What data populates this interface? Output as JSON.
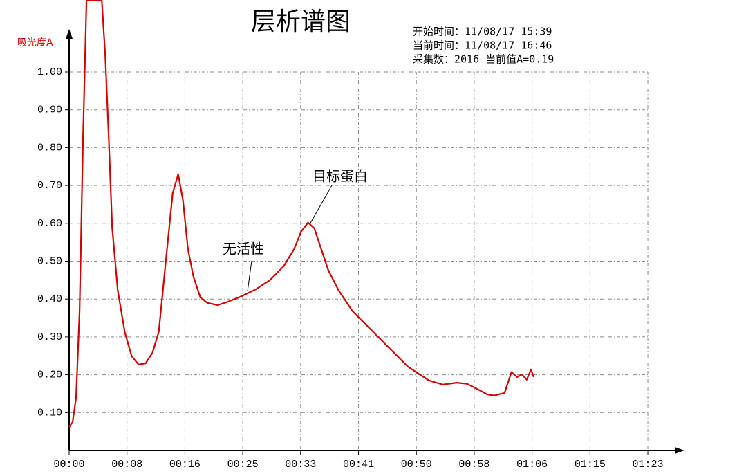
{
  "chart_data": {
    "type": "line",
    "title": "层析谱图",
    "y_label": "吸光度A",
    "info": [
      "开始时间：11/08/17 15:39",
      "当前时间：11/08/17 16:46",
      "采集数：2016 当前值A=0.19"
    ],
    "annotations": [
      "目标蛋白",
      "无活性"
    ],
    "x": [
      0,
      0.5,
      1.0,
      1.5,
      2.0,
      2.5,
      4.7,
      5.2,
      5.7,
      6.2,
      7.0,
      8.0,
      9.0,
      10.0,
      11.0,
      12.0,
      12.9,
      13.9,
      14.9,
      15.7,
      16.4,
      17.1,
      17.9,
      18.9,
      19.9,
      21.4,
      22.9,
      24.9,
      26.9,
      28.9,
      30.9,
      32.4,
      33.4,
      34.4,
      35.3,
      36.3,
      37.3,
      38.8,
      40.8,
      42.8,
      45.8,
      48.8,
      51.8,
      53.8,
      55.8,
      57.3,
      58.7,
      60.2,
      61.2,
      62.7,
      63.7,
      64.5,
      65.2,
      65.9,
      66.5,
      66.9
    ],
    "series": [
      {
        "name": "A",
        "color": "#d40000",
        "values": [
          0.062,
          0.075,
          0.139,
          0.368,
          0.825,
          1.19,
          1.19,
          1.044,
          0.825,
          0.587,
          0.423,
          0.313,
          0.249,
          0.227,
          0.23,
          0.258,
          0.313,
          0.496,
          0.679,
          0.73,
          0.66,
          0.532,
          0.459,
          0.404,
          0.39,
          0.384,
          0.393,
          0.408,
          0.426,
          0.45,
          0.487,
          0.532,
          0.578,
          0.602,
          0.587,
          0.532,
          0.477,
          0.423,
          0.368,
          0.331,
          0.276,
          0.221,
          0.185,
          0.174,
          0.179,
          0.176,
          0.163,
          0.148,
          0.145,
          0.152,
          0.207,
          0.194,
          0.201,
          0.187,
          0.214,
          0.194
        ]
      }
    ],
    "xlim": [
      0,
      83.33
    ],
    "xticks": [
      {
        "value": 0,
        "label": "00:00"
      },
      {
        "value": 8.333,
        "label": "00:08"
      },
      {
        "value": 16.667,
        "label": "00:16"
      },
      {
        "value": 25,
        "label": "00:25"
      },
      {
        "value": 33.333,
        "label": "00:33"
      },
      {
        "value": 41.667,
        "label": "00:41"
      },
      {
        "value": 50,
        "label": "00:50"
      },
      {
        "value": 58.333,
        "label": "00:58"
      },
      {
        "value": 66.667,
        "label": "01:06"
      },
      {
        "value": 75,
        "label": "01:15"
      },
      {
        "value": 83.333,
        "label": "01:23"
      }
    ],
    "ylim": [
      0,
      1.0
    ],
    "yticks": [
      {
        "value": 0.1,
        "label": "0.10"
      },
      {
        "value": 0.2,
        "label": "0.20"
      },
      {
        "value": 0.3,
        "label": "0.30"
      },
      {
        "value": 0.4,
        "label": "0.40"
      },
      {
        "value": 0.5,
        "label": "0.50"
      },
      {
        "value": 0.6,
        "label": "0.60"
      },
      {
        "value": 0.7,
        "label": "0.70"
      },
      {
        "value": 0.8,
        "label": "0.80"
      },
      {
        "value": 0.9,
        "label": "0.90"
      },
      {
        "value": 1.0,
        "label": "1.00"
      }
    ],
    "grid": true
  }
}
